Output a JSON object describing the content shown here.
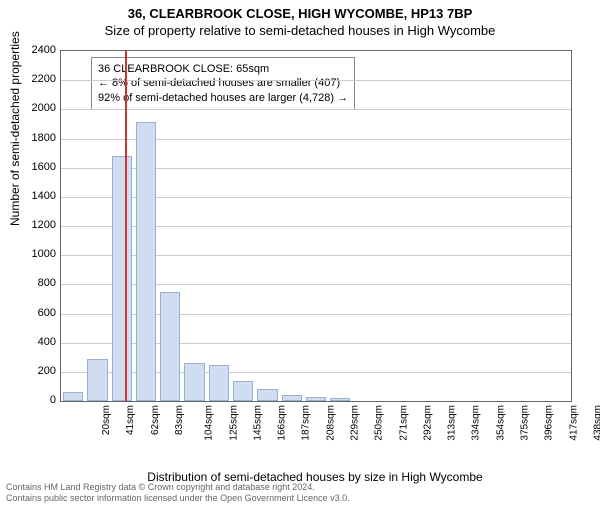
{
  "title_line1": "36, CLEARBROOK CLOSE, HIGH WYCOMBE, HP13 7BP",
  "title_line2": "Size of property relative to semi-detached houses in High Wycombe",
  "chart": {
    "type": "histogram",
    "ylabel": "Number of semi-detached properties",
    "xlabel": "Distribution of semi-detached houses by size in High Wycombe",
    "ylim": [
      0,
      2400
    ],
    "ytick_step": 200,
    "background_color": "#ffffff",
    "grid_color": "#cccccc",
    "bar_fill": "#d0dcf0",
    "bar_border": "#9ab0d6",
    "marker_color": "#cc3333",
    "marker_x_sqm": 65,
    "x_categories": [
      "20sqm",
      "41sqm",
      "62sqm",
      "83sqm",
      "104sqm",
      "125sqm",
      "145sqm",
      "166sqm",
      "187sqm",
      "208sqm",
      "229sqm",
      "250sqm",
      "271sqm",
      "292sqm",
      "313sqm",
      "334sqm",
      "354sqm",
      "375sqm",
      "396sqm",
      "417sqm",
      "438sqm"
    ],
    "bar_values": [
      60,
      290,
      1680,
      1910,
      750,
      260,
      250,
      140,
      80,
      40,
      30,
      20
    ],
    "annotation": {
      "line1": "36 CLEARBROOK CLOSE: 65sqm",
      "line2": "← 8% of semi-detached houses are smaller (407)",
      "line3": "92% of semi-detached houses are larger (4,728) →"
    }
  },
  "footer": {
    "line1": "Contains HM Land Registry data © Crown copyright and database right 2024.",
    "line2": "Contains public sector information licensed under the Open Government Licence v3.0."
  }
}
